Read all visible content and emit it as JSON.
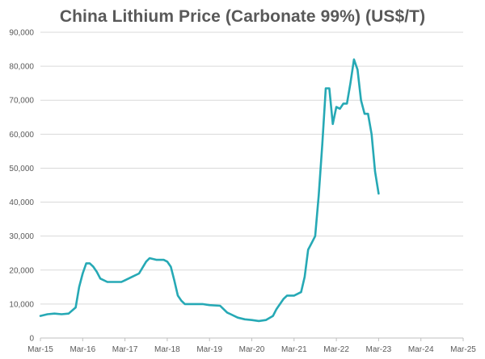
{
  "chart_data": {
    "type": "line",
    "title": "China Lithium Price (Carbonate 99%)  (US$/T)",
    "xlabel": "",
    "ylabel": "",
    "ylim": [
      0,
      90000
    ],
    "ytick_values": [
      0,
      10000,
      20000,
      30000,
      40000,
      50000,
      60000,
      70000,
      80000,
      90000
    ],
    "ytick_labels": [
      "0",
      "10,000",
      "20,000",
      "30,000",
      "40,000",
      "50,000",
      "60,000",
      "70,000",
      "80,000",
      "90,000"
    ],
    "xtick_labels": [
      "Mar-15",
      "Mar-16",
      "Mar-17",
      "Mar-18",
      "Mar-19",
      "Mar-20",
      "Mar-21",
      "Mar-22",
      "Mar-23",
      "Mar-24",
      "Mar-25"
    ],
    "grid": true,
    "legend": "none",
    "line_color": "#26A9B5",
    "grid_color": "#D9D9D9",
    "series": [
      {
        "x": [
          "2015-03",
          "2015-05",
          "2015-07",
          "2015-09",
          "2015-11",
          "2016-01",
          "2016-02",
          "2016-03",
          "2016-04",
          "2016-05",
          "2016-06",
          "2016-07",
          "2016-08",
          "2016-10",
          "2016-12",
          "2017-02",
          "2017-03",
          "2017-05",
          "2017-07",
          "2017-09",
          "2017-10",
          "2017-12",
          "2018-02",
          "2018-03",
          "2018-04",
          "2018-05",
          "2018-06",
          "2018-07",
          "2018-08",
          "2018-09",
          "2018-11",
          "2019-01",
          "2019-03",
          "2019-06",
          "2019-08",
          "2019-09",
          "2019-11",
          "2020-01",
          "2020-03",
          "2020-05",
          "2020-07",
          "2020-09",
          "2020-10",
          "2020-12",
          "2021-01",
          "2021-02",
          "2021-03",
          "2021-05",
          "2021-06",
          "2021-07",
          "2021-08",
          "2021-09",
          "2021-10",
          "2021-11",
          "2021-12",
          "2022-01",
          "2022-02",
          "2022-03",
          "2022-04",
          "2022-05",
          "2022-06",
          "2022-07",
          "2022-08",
          "2022-09",
          "2022-10",
          "2022-11",
          "2022-12",
          "2023-01",
          "2023-02",
          "2023-03"
        ],
        "values": [
          6500,
          7000,
          7200,
          7000,
          7200,
          9000,
          15000,
          19000,
          22000,
          22000,
          21000,
          19500,
          17500,
          16500,
          16500,
          16500,
          17000,
          18000,
          19000,
          22500,
          23500,
          23000,
          23000,
          22500,
          21000,
          17000,
          12500,
          11000,
          10000,
          10000,
          10000,
          10000,
          9700,
          9500,
          7500,
          7000,
          6000,
          5500,
          5300,
          5000,
          5300,
          6500,
          8500,
          11500,
          12500,
          12500,
          12500,
          13500,
          18000,
          26000,
          28000,
          30000,
          42000,
          57000,
          73500,
          73500,
          63000,
          68000,
          67500,
          69000,
          69000,
          75000,
          82000,
          79000,
          70000,
          66000,
          66000,
          60000,
          49000,
          42500
        ]
      }
    ]
  }
}
